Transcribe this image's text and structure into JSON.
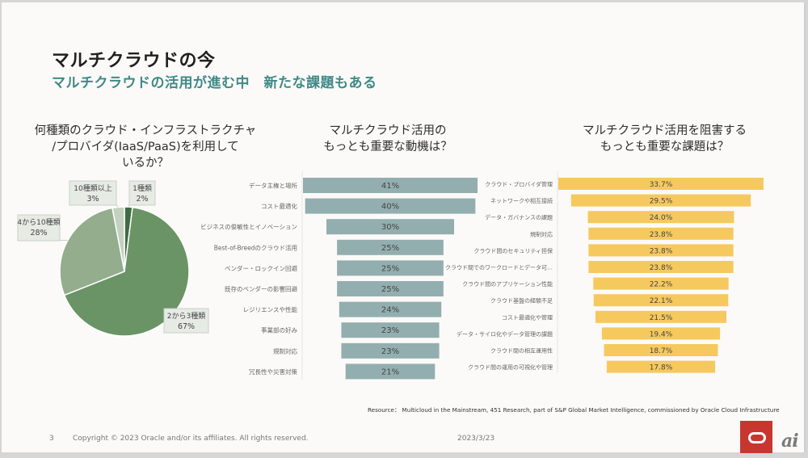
{
  "slide": {
    "title": "マルチクラウドの今",
    "subtitle": "マルチクラウドの活用が進む中　新たな課題もある",
    "resource": "Resource： Multicloud in the Mainstream, 451 Research, part of S&P Global Market Intelligence, commissioned by Oracle Cloud Infrastructure",
    "page_number": "3",
    "copyright": "Copyright © 2023 Oracle and/or its affiliates. All rights reserved.",
    "date": "2023/3/23",
    "logos": {
      "oracle": "oracle-logo-icon",
      "ai": "ai"
    }
  },
  "chart_data": [
    {
      "type": "pie",
      "title_lines": [
        "何種類のクラウド・インフラストラクチャ",
        "/プロバイダ(IaaS/PaaS)を利用して",
        "いるか？"
      ],
      "slices": [
        {
          "label": "1種類",
          "value": 2,
          "display": "2%",
          "color": "#3f6b45"
        },
        {
          "label": "2から3種類",
          "value": 67,
          "display": "67%",
          "color": "#6a9465"
        },
        {
          "label": "4から10種類",
          "value": 28,
          "display": "28%",
          "color": "#93ad8d"
        },
        {
          "label": "10種類以上",
          "value": 3,
          "display": "3%",
          "color": "#c3d1bf"
        }
      ],
      "start": "12 o'clock, clockwise",
      "labels": "callouts"
    },
    {
      "type": "bar",
      "orientation": "horizontal-centered",
      "title_lines": [
        "マルチクラウド活用の",
        "もっとも重要な動機は？"
      ],
      "color": "#93aeaf",
      "categories": [
        "データ主権と場所",
        "コスト最適化",
        "ビジネスの俊敏性とイノベーション",
        "Best-of-Breedのクラウド活用",
        "ベンダー・ロックイン回避",
        "既存のベンダーの影響回避",
        "レジリエンスや性能",
        "事業部の好み",
        "規制対応",
        "冗長性や災害対策"
      ],
      "values": [
        41,
        40,
        30,
        25,
        25,
        25,
        24,
        23,
        23,
        21
      ],
      "labels": [
        "41%",
        "40%",
        "30%",
        "25%",
        "25%",
        "25%",
        "24%",
        "23%",
        "23%",
        "21%"
      ],
      "unit": "%"
    },
    {
      "type": "bar",
      "orientation": "horizontal-centered",
      "title_lines": [
        "マルチクラウド活用を阻害する",
        "もっとも重要な課題は？"
      ],
      "color": "#f6c95e",
      "categories": [
        "クラウド・プロバイダ管理",
        "ネットワークや相互接続",
        "データ・ガバナンスの課題",
        "規制対応",
        "クラウド間のセキュリティ担保",
        "クラウド間でのワークロードとデータ可…",
        "クラウド間のアプリケーション性能",
        "クラウド基盤の経験不足",
        "コスト最適化や管理",
        "データ・サイロ化やデータ管理の課題",
        "クラウド間の相互運用性",
        "クラウド間の運用の可視化や管理"
      ],
      "values": [
        33.7,
        29.5,
        24.0,
        23.8,
        23.8,
        23.8,
        22.2,
        22.1,
        21.5,
        19.4,
        18.7,
        17.8
      ],
      "labels": [
        "33.7%",
        "29.5%",
        "24.0%",
        "23.8%",
        "23.8%",
        "23.8%",
        "22.2%",
        "22.1%",
        "21.5%",
        "19.4%",
        "18.7%",
        "17.8%"
      ],
      "unit": "%"
    }
  ]
}
